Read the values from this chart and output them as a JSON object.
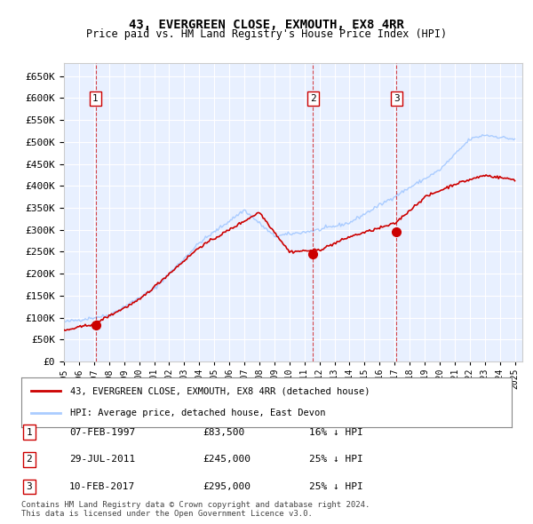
{
  "title": "43, EVERGREEN CLOSE, EXMOUTH, EX8 4RR",
  "subtitle": "Price paid vs. HM Land Registry's House Price Index (HPI)",
  "ylim": [
    0,
    680000
  ],
  "yticks": [
    0,
    50000,
    100000,
    150000,
    200000,
    250000,
    300000,
    350000,
    400000,
    450000,
    500000,
    550000,
    600000,
    650000
  ],
  "xlim_start": 1995.0,
  "xlim_end": 2025.5,
  "sale_color": "#cc0000",
  "hpi_color": "#aaccff",
  "sale_label": "43, EVERGREEN CLOSE, EXMOUTH, EX8 4RR (detached house)",
  "hpi_label": "HPI: Average price, detached house, East Devon",
  "transactions": [
    {
      "num": 1,
      "date": "07-FEB-1997",
      "date_x": 1997.1,
      "price": 83500,
      "pct": "16%",
      "dir": "↓"
    },
    {
      "num": 2,
      "date": "29-JUL-2011",
      "date_x": 2011.57,
      "price": 245000,
      "pct": "25%",
      "dir": "↓"
    },
    {
      "num": 3,
      "date": "10-FEB-2017",
      "date_x": 2017.12,
      "price": 295000,
      "pct": "25%",
      "dir": "↓"
    }
  ],
  "footer": "Contains HM Land Registry data © Crown copyright and database right 2024.\nThis data is licensed under the Open Government Licence v3.0.",
  "plot_bg": "#e8f0ff"
}
